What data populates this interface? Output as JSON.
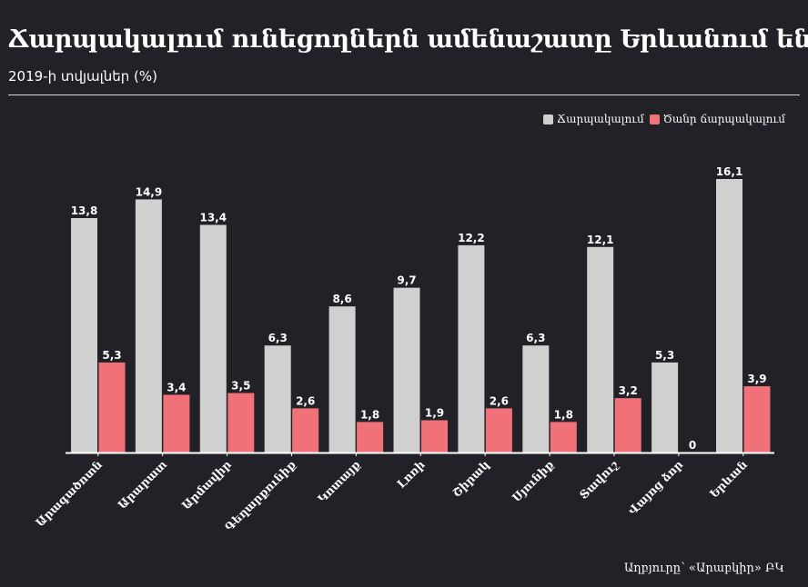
{
  "chart_data": {
    "type": "bar",
    "title": "Ճարպակալում ունեցողներն ամենաշատը Երևանում են",
    "subtitle": "2019-ի տվյալներ (%)",
    "xlabel": "",
    "ylabel": "",
    "ylim": [
      0,
      17
    ],
    "grid": false,
    "legend_position": "top-right",
    "categories": [
      "Արագածոտն",
      "Արարատ",
      "Արմավիր",
      "Գեղարքունիք",
      "Կոտայք",
      "Լոռի",
      "Շիրակ",
      "Սյունիք",
      "Տավուշ",
      "Վայոց ձոր",
      "Երևան"
    ],
    "category_values": [
      "13,8",
      "14,9",
      "13,4",
      "6,3",
      "8,6",
      "9,7",
      "12,2",
      "6,3",
      "12,1",
      "5,3",
      "16,1"
    ],
    "series": [
      {
        "name": "Ճարպակալում",
        "color": "#d0d0d0",
        "values": [
          13.8,
          14.9,
          13.4,
          6.3,
          8.6,
          9.7,
          12.2,
          6.3,
          12.1,
          5.3,
          16.1
        ],
        "labels": [
          "13,8",
          "14,9",
          "13,4",
          "6,3",
          "8,6",
          "9,7",
          "12,2",
          "6,3",
          "12,1",
          "5,3",
          "16,1"
        ]
      },
      {
        "name": "Ծանր ճարպակալում",
        "color": "#f07178",
        "values": [
          5.3,
          3.4,
          3.5,
          2.6,
          1.8,
          1.9,
          2.6,
          1.8,
          3.2,
          0,
          3.9
        ],
        "labels": [
          "5,3",
          "3,4",
          "3,5",
          "2,6",
          "1,8",
          "1,9",
          "2,6",
          "1,8",
          "3,2",
          "0",
          "3,9"
        ]
      }
    ],
    "source": "Աղբյուրը՝ «Արաբկիր» ԲԿ"
  },
  "colors": {
    "background": "#212127",
    "text": "#ffffff",
    "axis": "#ffffff"
  }
}
